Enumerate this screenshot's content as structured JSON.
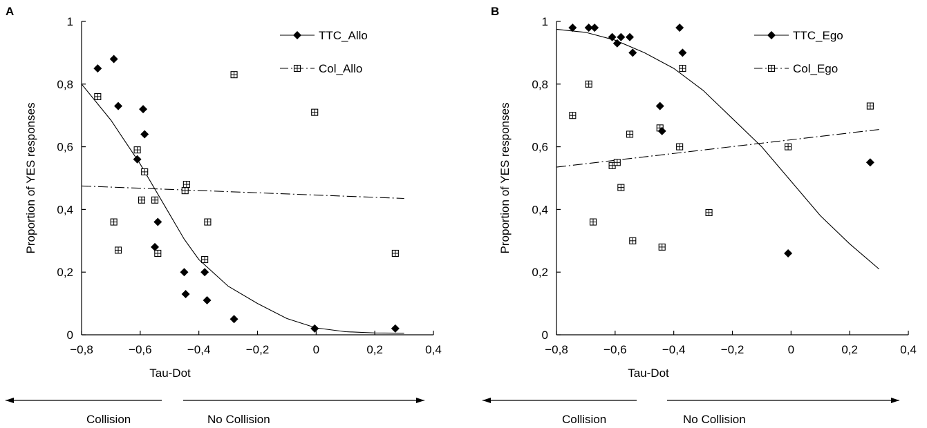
{
  "chart_data": [
    {
      "panel": "A",
      "type": "scatter",
      "ylabel": "Proportion of YES responses",
      "xlabel": "Tau-Dot",
      "xlim": [
        -0.8,
        0.4
      ],
      "ylim": [
        0,
        1
      ],
      "x_ticks": [
        -0.8,
        -0.6,
        -0.4,
        -0.2,
        0,
        0.2,
        0.4
      ],
      "x_tick_labels": [
        "−0,8",
        "−0,6",
        "−0,4",
        "−0,2",
        "0",
        "0,2",
        "0,4"
      ],
      "y_ticks": [
        0,
        0.2,
        0.4,
        0.6,
        0.8,
        1
      ],
      "y_tick_labels": [
        "0",
        "0,2",
        "0,4",
        "0,6",
        "0,8",
        "1"
      ],
      "grid": false,
      "legend_position": "top-right",
      "direction_labels": {
        "left": "Collision",
        "right": "No Collision"
      },
      "series": [
        {
          "name": "TTC_Allo",
          "marker": "filled-diamond",
          "line": "solid",
          "points": [
            [
              -0.745,
              0.85
            ],
            [
              -0.69,
              0.88
            ],
            [
              -0.675,
              0.73
            ],
            [
              -0.59,
              0.72
            ],
            [
              -0.585,
              0.64
            ],
            [
              -0.61,
              0.56
            ],
            [
              -0.55,
              0.28
            ],
            [
              -0.54,
              0.36
            ],
            [
              -0.45,
              0.2
            ],
            [
              -0.445,
              0.13
            ],
            [
              -0.38,
              0.2
            ],
            [
              -0.372,
              0.11
            ],
            [
              -0.28,
              0.05
            ],
            [
              -0.005,
              0.02
            ],
            [
              0.27,
              0.02
            ]
          ],
          "fit": [
            [
              -0.8,
              0.8
            ],
            [
              -0.7,
              0.685
            ],
            [
              -0.6,
              0.545
            ],
            [
              -0.5,
              0.385
            ],
            [
              -0.45,
              0.305
            ],
            [
              -0.4,
              0.24
            ],
            [
              -0.3,
              0.155
            ],
            [
              -0.2,
              0.1
            ],
            [
              -0.1,
              0.052
            ],
            [
              0,
              0.022
            ],
            [
              0.1,
              0.01
            ],
            [
              0.2,
              0.006
            ],
            [
              0.3,
              0.005
            ]
          ]
        },
        {
          "name": "Col_Allo",
          "marker": "boxed-plus",
          "line": "dash-dot",
          "points": [
            [
              -0.745,
              0.76
            ],
            [
              -0.69,
              0.36
            ],
            [
              -0.675,
              0.27
            ],
            [
              -0.61,
              0.59
            ],
            [
              -0.595,
              0.43
            ],
            [
              -0.585,
              0.52
            ],
            [
              -0.55,
              0.43
            ],
            [
              -0.54,
              0.26
            ],
            [
              -0.447,
              0.46
            ],
            [
              -0.442,
              0.48
            ],
            [
              -0.38,
              0.24
            ],
            [
              -0.37,
              0.36
            ],
            [
              -0.28,
              0.83
            ],
            [
              -0.005,
              0.71
            ],
            [
              0.27,
              0.26
            ]
          ],
          "fit": [
            [
              -0.8,
              0.475
            ],
            [
              0.3,
              0.435
            ]
          ]
        }
      ]
    },
    {
      "panel": "B",
      "type": "scatter",
      "ylabel": "Proportion of YES responses",
      "xlabel": "Tau-Dot",
      "xlim": [
        -0.8,
        0.4
      ],
      "ylim": [
        0,
        1
      ],
      "x_ticks": [
        -0.8,
        -0.6,
        -0.4,
        -0.2,
        0,
        0.2,
        0.4
      ],
      "x_tick_labels": [
        "−0,8",
        "−0,6",
        "−0,4",
        "−0,2",
        "0",
        "0,2",
        "0,4"
      ],
      "y_ticks": [
        0,
        0.2,
        0.4,
        0.6,
        0.8,
        1
      ],
      "y_tick_labels": [
        "0",
        "0,2",
        "0,4",
        "0,6",
        "0,8",
        "1"
      ],
      "grid": false,
      "legend_position": "top-right",
      "direction_labels": {
        "left": "Collision",
        "right": "No Collision"
      },
      "series": [
        {
          "name": "TTC_Ego",
          "marker": "filled-diamond",
          "line": "solid",
          "points": [
            [
              -0.745,
              0.98
            ],
            [
              -0.69,
              0.98
            ],
            [
              -0.67,
              0.98
            ],
            [
              -0.61,
              0.95
            ],
            [
              -0.593,
              0.93
            ],
            [
              -0.58,
              0.95
            ],
            [
              -0.55,
              0.95
            ],
            [
              -0.54,
              0.9
            ],
            [
              -0.447,
              0.73
            ],
            [
              -0.44,
              0.65
            ],
            [
              -0.38,
              0.98
            ],
            [
              -0.37,
              0.9
            ],
            [
              -0.01,
              0.26
            ],
            [
              0.27,
              0.55
            ]
          ],
          "fit": [
            [
              -0.8,
              0.975
            ],
            [
              -0.7,
              0.965
            ],
            [
              -0.6,
              0.94
            ],
            [
              -0.5,
              0.9
            ],
            [
              -0.4,
              0.85
            ],
            [
              -0.3,
              0.78
            ],
            [
              -0.2,
              0.69
            ],
            [
              -0.1,
              0.6
            ],
            [
              0,
              0.49
            ],
            [
              0.1,
              0.38
            ],
            [
              0.2,
              0.29
            ],
            [
              0.3,
              0.21
            ]
          ]
        },
        {
          "name": "Col_Ego",
          "marker": "boxed-plus",
          "line": "dash-dot",
          "points": [
            [
              -0.745,
              0.7
            ],
            [
              -0.69,
              0.8
            ],
            [
              -0.675,
              0.36
            ],
            [
              -0.61,
              0.54
            ],
            [
              -0.593,
              0.55
            ],
            [
              -0.58,
              0.47
            ],
            [
              -0.55,
              0.64
            ],
            [
              -0.54,
              0.3
            ],
            [
              -0.447,
              0.66
            ],
            [
              -0.44,
              0.28
            ],
            [
              -0.38,
              0.6
            ],
            [
              -0.37,
              0.85
            ],
            [
              -0.28,
              0.39
            ],
            [
              -0.01,
              0.6
            ],
            [
              0.27,
              0.73
            ]
          ],
          "fit": [
            [
              -0.8,
              0.535
            ],
            [
              0.3,
              0.655
            ]
          ]
        }
      ]
    }
  ]
}
